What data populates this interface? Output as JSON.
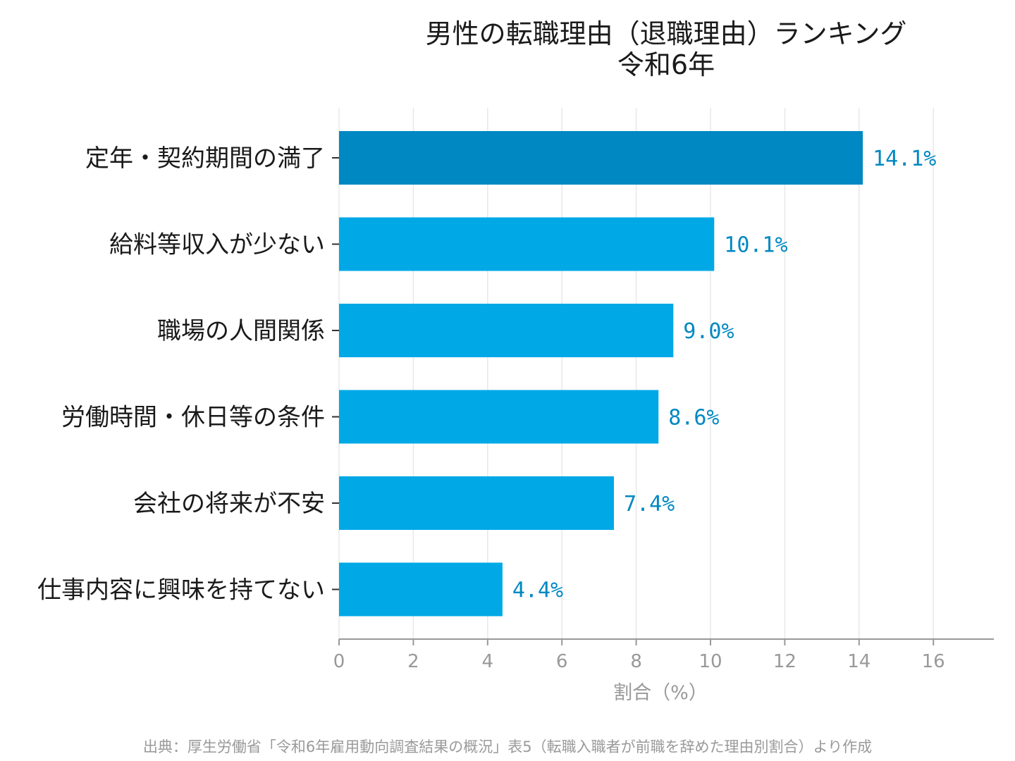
{
  "chart_data": {
    "type": "bar",
    "orientation": "horizontal",
    "title": "男性の転職理由（退職理由）ランキング",
    "subtitle": "令和6年",
    "categories": [
      "定年・契約期間の満了",
      "給料等収入が少ない",
      "職場の人間関係",
      "労働時間・休日等の条件",
      "会社の将来が不安",
      "仕事内容に興味を持てない"
    ],
    "values": [
      14.1,
      10.1,
      9.0,
      8.6,
      7.4,
      4.4
    ],
    "value_labels": [
      "14.1%",
      "10.1%",
      "9.0%",
      "8.6%",
      "7.4%",
      "4.4%"
    ],
    "xlabel": "割合（%）",
    "ylabel": "",
    "xlim": [
      0,
      17.6
    ],
    "xticks": [
      0,
      2,
      4,
      6,
      8,
      10,
      12,
      14,
      16
    ],
    "grid": true,
    "legend": "none",
    "colors": {
      "highlight_bar": "#0088c2",
      "bar": "#00a8e6",
      "value_label": "#0088c2",
      "gridline": "#e8e8e8",
      "axis": "#999999"
    }
  },
  "source": "出典：厚生労働省「令和6年雇用動向調査結果の概況」表5（転職入職者が前職を辞めた理由別割合）より作成"
}
